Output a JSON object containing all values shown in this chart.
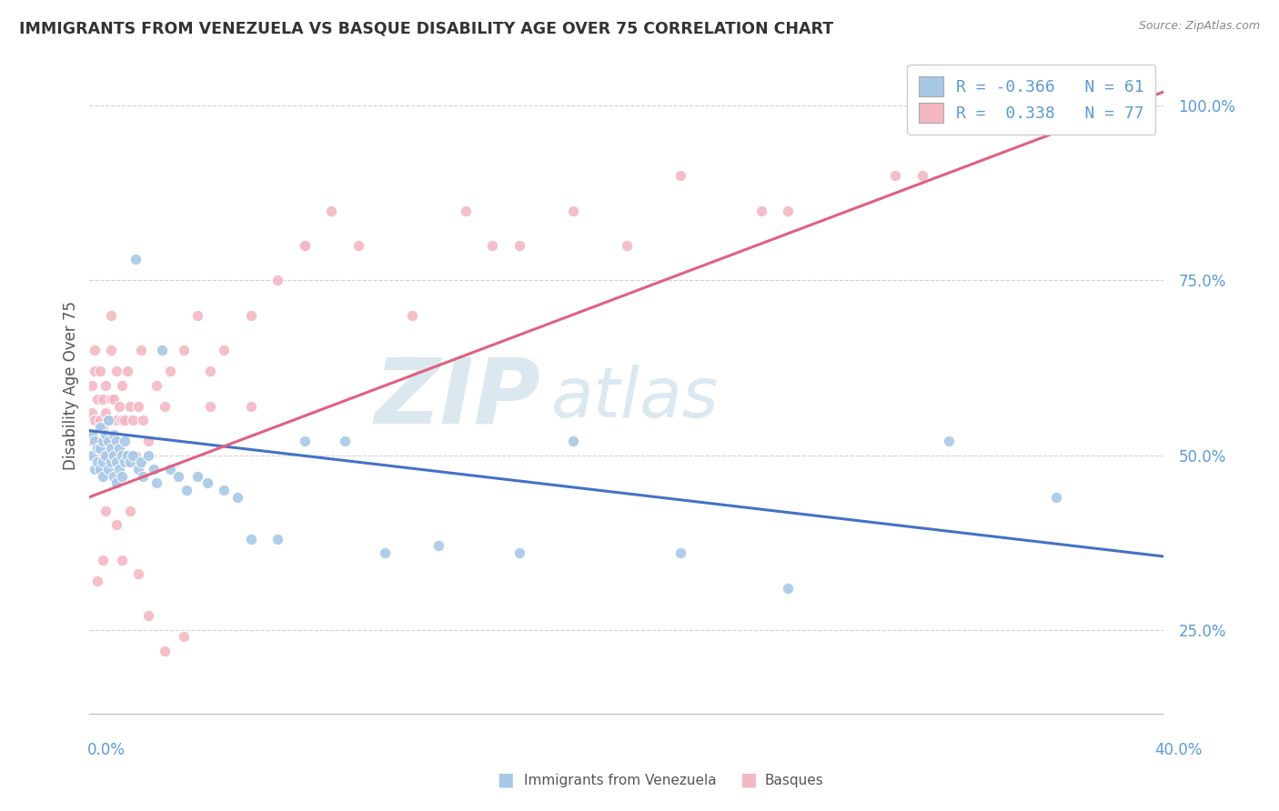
{
  "title": "IMMIGRANTS FROM VENEZUELA VS BASQUE DISABILITY AGE OVER 75 CORRELATION CHART",
  "source": "Source: ZipAtlas.com",
  "ylabel": "Disability Age Over 75",
  "xlim": [
    0.0,
    0.4
  ],
  "ylim": [
    0.13,
    1.07
  ],
  "yticks": [
    0.25,
    0.5,
    0.75,
    1.0
  ],
  "ytick_labels": [
    "25.0%",
    "50.0%",
    "75.0%",
    "100.0%"
  ],
  "xtick_left_label": "0.0%",
  "xtick_right_label": "40.0%",
  "blue_R": "-0.366",
  "blue_N": "61",
  "pink_R": "0.338",
  "pink_N": "77",
  "blue_color": "#a8c8e8",
  "pink_color": "#f4b8c4",
  "blue_line_color": "#4472c4",
  "pink_line_color": "#e06080",
  "background_color": "#ffffff",
  "grid_color": "#cccccc",
  "watermark_color": "#dce8f0",
  "legend_label1": "Immigrants from Venezuela",
  "legend_label2": "Basques",
  "blue_scatter_x": [
    0.001,
    0.001,
    0.002,
    0.002,
    0.003,
    0.003,
    0.004,
    0.004,
    0.004,
    0.005,
    0.005,
    0.005,
    0.006,
    0.006,
    0.007,
    0.007,
    0.007,
    0.008,
    0.008,
    0.009,
    0.009,
    0.009,
    0.01,
    0.01,
    0.01,
    0.011,
    0.011,
    0.012,
    0.012,
    0.013,
    0.013,
    0.014,
    0.015,
    0.016,
    0.017,
    0.018,
    0.019,
    0.02,
    0.022,
    0.024,
    0.025,
    0.027,
    0.03,
    0.033,
    0.036,
    0.04,
    0.044,
    0.05,
    0.055,
    0.06,
    0.07,
    0.08,
    0.095,
    0.11,
    0.13,
    0.16,
    0.18,
    0.22,
    0.26,
    0.32,
    0.36
  ],
  "blue_scatter_y": [
    0.53,
    0.5,
    0.52,
    0.48,
    0.51,
    0.49,
    0.54,
    0.51,
    0.48,
    0.52,
    0.49,
    0.47,
    0.53,
    0.5,
    0.55,
    0.52,
    0.48,
    0.51,
    0.49,
    0.53,
    0.5,
    0.47,
    0.52,
    0.49,
    0.46,
    0.51,
    0.48,
    0.5,
    0.47,
    0.52,
    0.49,
    0.5,
    0.49,
    0.5,
    0.78,
    0.48,
    0.49,
    0.47,
    0.5,
    0.48,
    0.46,
    0.65,
    0.48,
    0.47,
    0.45,
    0.47,
    0.46,
    0.45,
    0.44,
    0.38,
    0.38,
    0.52,
    0.52,
    0.36,
    0.37,
    0.36,
    0.52,
    0.36,
    0.31,
    0.52,
    0.44
  ],
  "pink_scatter_x": [
    0.001,
    0.001,
    0.001,
    0.002,
    0.002,
    0.002,
    0.003,
    0.003,
    0.003,
    0.004,
    0.004,
    0.004,
    0.005,
    0.005,
    0.005,
    0.006,
    0.006,
    0.006,
    0.007,
    0.007,
    0.008,
    0.008,
    0.008,
    0.009,
    0.009,
    0.01,
    0.01,
    0.011,
    0.011,
    0.012,
    0.012,
    0.013,
    0.013,
    0.014,
    0.015,
    0.016,
    0.017,
    0.018,
    0.019,
    0.02,
    0.022,
    0.025,
    0.028,
    0.03,
    0.035,
    0.04,
    0.045,
    0.05,
    0.06,
    0.07,
    0.08,
    0.09,
    0.1,
    0.12,
    0.14,
    0.16,
    0.18,
    0.2,
    0.22,
    0.26,
    0.3,
    0.003,
    0.005,
    0.006,
    0.01,
    0.012,
    0.015,
    0.018,
    0.022,
    0.028,
    0.035,
    0.045,
    0.06,
    0.08,
    0.15,
    0.25,
    0.31
  ],
  "pink_scatter_y": [
    0.6,
    0.56,
    0.52,
    0.55,
    0.65,
    0.62,
    0.52,
    0.58,
    0.48,
    0.55,
    0.62,
    0.5,
    0.58,
    0.54,
    0.5,
    0.56,
    0.52,
    0.6,
    0.5,
    0.55,
    0.58,
    0.65,
    0.7,
    0.52,
    0.58,
    0.55,
    0.62,
    0.5,
    0.57,
    0.55,
    0.6,
    0.5,
    0.55,
    0.62,
    0.57,
    0.55,
    0.5,
    0.57,
    0.65,
    0.55,
    0.52,
    0.6,
    0.57,
    0.62,
    0.65,
    0.7,
    0.62,
    0.65,
    0.7,
    0.75,
    0.8,
    0.85,
    0.8,
    0.7,
    0.85,
    0.8,
    0.85,
    0.8,
    0.9,
    0.85,
    0.9,
    0.32,
    0.35,
    0.42,
    0.4,
    0.35,
    0.42,
    0.33,
    0.27,
    0.22,
    0.24,
    0.57,
    0.57,
    0.8,
    0.8,
    0.85,
    0.9
  ],
  "blue_line_x0": 0.0,
  "blue_line_x1": 0.4,
  "blue_line_y0": 0.535,
  "blue_line_y1": 0.355,
  "pink_line_x0": 0.0,
  "pink_line_x1": 0.4,
  "pink_line_y0": 0.44,
  "pink_line_y1": 1.02
}
